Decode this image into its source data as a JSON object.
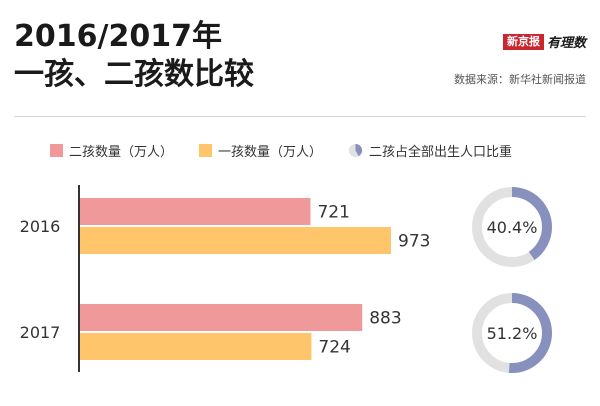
{
  "header": {
    "title_line1": "2016/2017年",
    "title_line2": "一孩、二孩数比较",
    "brand_badge": "新京报",
    "brand_script": "有理数",
    "source": "数据来源：新华社新闻报道"
  },
  "colors": {
    "second_child": "#f0999a",
    "first_child": "#ffc56a",
    "ratio": "#8891be",
    "ratio_track": "#e1e1e1",
    "axis": "#333333"
  },
  "chart_data": {
    "type": "bar",
    "orientation": "horizontal",
    "categories": [
      "2016",
      "2017"
    ],
    "series": [
      {
        "name": "二孩数量（万人）",
        "values": [
          721,
          883
        ]
      },
      {
        "name": "一孩数量（万人）",
        "values": [
          973,
          724
        ]
      }
    ],
    "ratio": {
      "name": "二孩占全部出生人口比重",
      "values": [
        40.4,
        51.2
      ],
      "labels": [
        "40.4%",
        "51.2%"
      ]
    },
    "xlim": [
      0,
      1000
    ],
    "grid": false,
    "legend": "top",
    "title": "2016/2017年 一孩、二孩数比较"
  }
}
